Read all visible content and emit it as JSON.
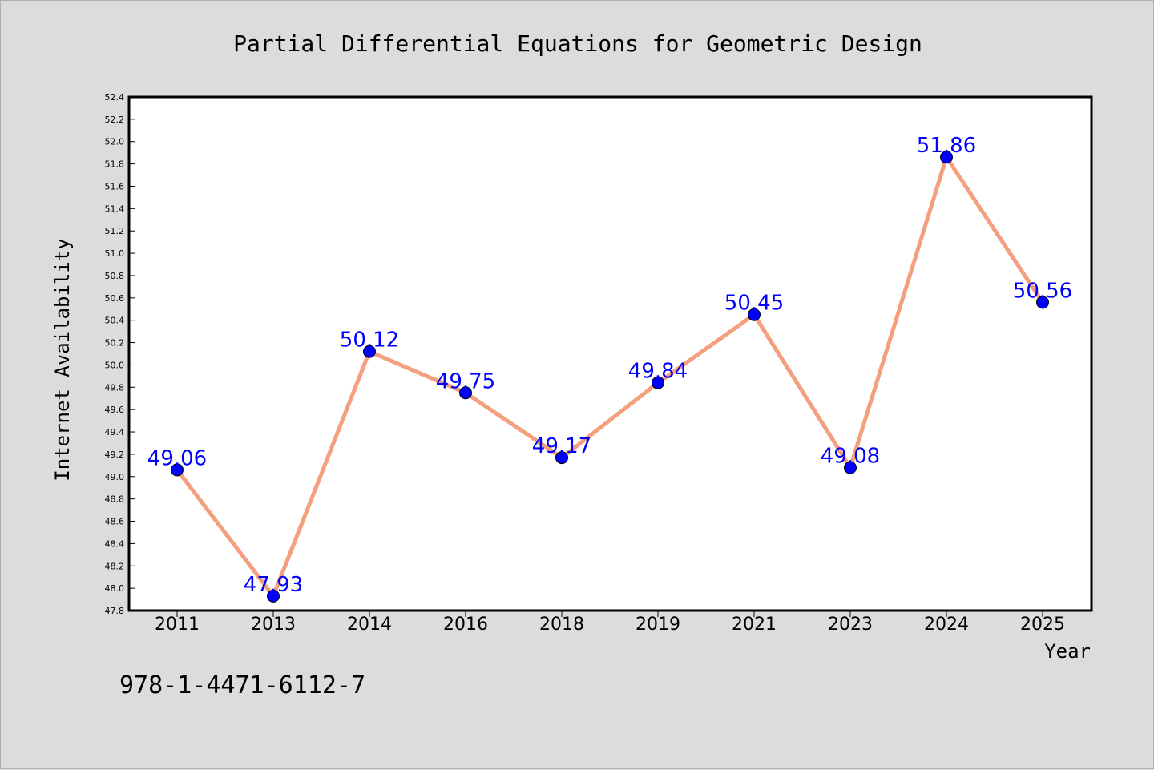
{
  "chart_data": {
    "type": "line",
    "title": "Partial Differential Equations for Geometric Design",
    "xlabel": "Year",
    "ylabel": "Internet Availability",
    "categories": [
      "2011",
      "2013",
      "2014",
      "2016",
      "2018",
      "2019",
      "2021",
      "2023",
      "2024",
      "2025"
    ],
    "series": [
      {
        "values": [
          49.06,
          47.93,
          50.12,
          49.75,
          49.17,
          49.84,
          50.45,
          49.08,
          51.86,
          50.56
        ],
        "data_labels": [
          "49.06",
          "47.93",
          "50.12",
          "49.75",
          "49.17",
          "49.84",
          "50.45",
          "49.08",
          "51.86",
          "50.56"
        ],
        "line_color": "#f4a07e",
        "marker_color": "#0000ff"
      }
    ],
    "ylim": [
      47.8,
      52.4
    ],
    "yticks": [
      "47.8",
      "48.0",
      "48.2",
      "48.4",
      "48.6",
      "48.8",
      "49.0",
      "49.2",
      "49.4",
      "49.6",
      "49.8",
      "50.0",
      "50.2",
      "50.4",
      "50.6",
      "50.8",
      "51.0",
      "51.2",
      "51.4",
      "51.6",
      "51.8",
      "52.0",
      "52.2",
      "52.4"
    ],
    "grid": false,
    "legend": "none"
  },
  "annotation": {
    "isbn": "978-1-4471-6112-7"
  },
  "colors": {
    "background": "#dcdcdc",
    "plot_background": "#ffffff",
    "line": "#f4a07e",
    "marker": "#0000ff",
    "data_label": "#0000ff"
  }
}
